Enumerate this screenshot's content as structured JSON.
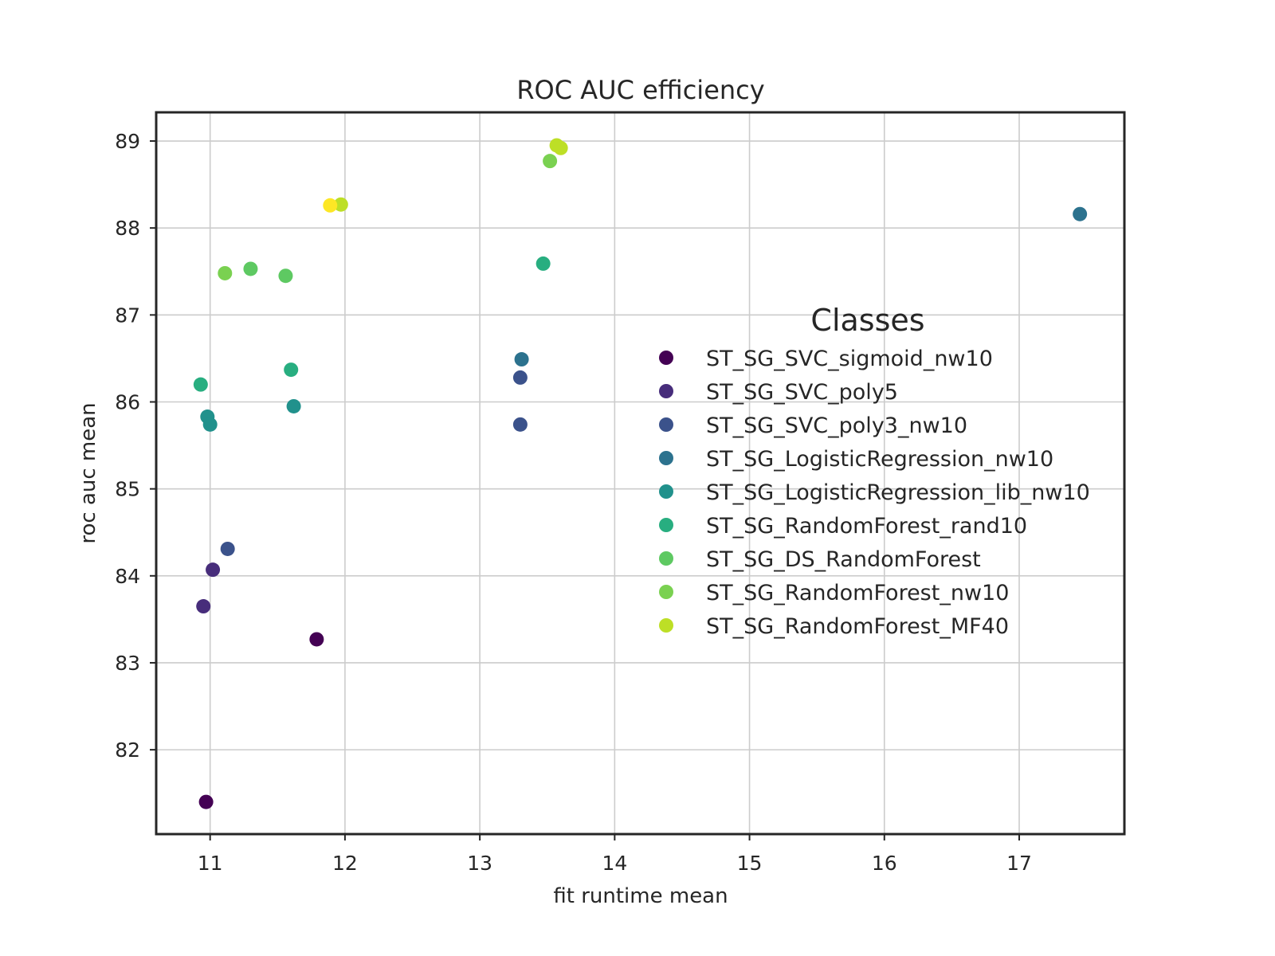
{
  "chart_data": {
    "type": "scatter",
    "title": "ROC AUC efficiency",
    "xlabel": "fit runtime mean",
    "ylabel": "roc auc mean",
    "xlim": [
      10.6,
      17.78
    ],
    "ylim": [
      81.03,
      89.33
    ],
    "xticks": [
      11,
      12,
      13,
      14,
      15,
      16,
      17
    ],
    "yticks": [
      82,
      83,
      84,
      85,
      86,
      87,
      88,
      89
    ],
    "grid": true,
    "legend": {
      "title": "Classes",
      "position": "right"
    },
    "series": [
      {
        "name": "ST_SG_SVC_sigmoid_nw10",
        "color": "#440154",
        "points": [
          [
            10.97,
            81.4
          ],
          [
            11.79,
            83.27
          ]
        ]
      },
      {
        "name": "ST_SG_SVC_poly5",
        "color": "#472d7b",
        "points": [
          [
            10.95,
            83.65
          ],
          [
            11.02,
            84.07
          ]
        ]
      },
      {
        "name": "ST_SG_SVC_poly3_nw10",
        "color": "#3b528b",
        "points": [
          [
            11.13,
            84.31
          ],
          [
            13.3,
            86.28
          ],
          [
            13.3,
            85.74
          ]
        ]
      },
      {
        "name": "ST_SG_LogisticRegression_nw10",
        "color": "#2c728e",
        "points": [
          [
            13.31,
            86.49
          ],
          [
            17.45,
            88.16
          ]
        ]
      },
      {
        "name": "ST_SG_LogisticRegression_lib_nw10",
        "color": "#21918c",
        "points": [
          [
            10.98,
            85.83
          ],
          [
            11.0,
            85.74
          ],
          [
            11.62,
            85.95
          ]
        ]
      },
      {
        "name": "ST_SG_RandomForest_rand10",
        "color": "#28ae80",
        "points": [
          [
            10.93,
            86.2
          ],
          [
            11.6,
            86.37
          ],
          [
            13.47,
            87.59
          ]
        ]
      },
      {
        "name": "ST_SG_DS_RandomForest",
        "color": "#5ec962",
        "points": [
          [
            11.3,
            87.53
          ],
          [
            11.56,
            87.45
          ]
        ]
      },
      {
        "name": "ST_SG_RandomForest_nw10",
        "color": "#7ad151",
        "points": [
          [
            11.11,
            87.48
          ],
          [
            13.52,
            88.77
          ]
        ]
      },
      {
        "name": "ST_SG_RandomForest_MF40",
        "color": "#bddf26",
        "points": [
          [
            11.97,
            88.27
          ],
          [
            13.57,
            88.95
          ],
          [
            13.6,
            88.92
          ]
        ]
      }
    ],
    "extra_points": {
      "color": "#fde725",
      "points": [
        [
          11.89,
          88.26
        ]
      ]
    }
  }
}
